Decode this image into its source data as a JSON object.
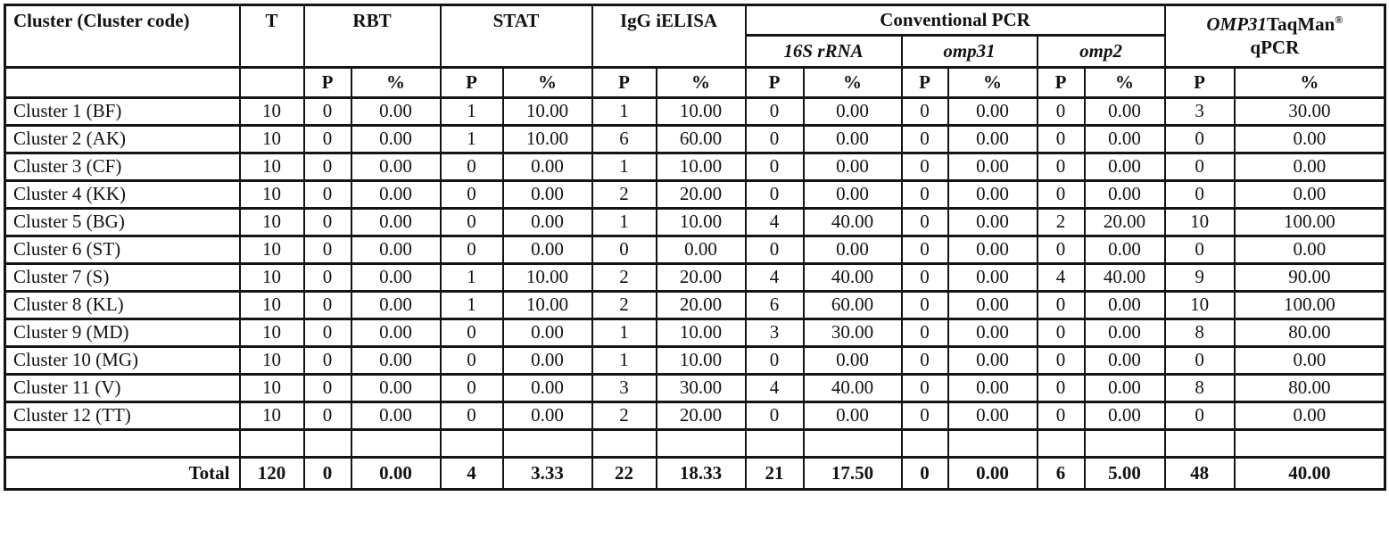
{
  "page": {
    "background_color": "#ffffff",
    "border_color": "#141414",
    "text_color": "#121212"
  },
  "table": {
    "header": {
      "cluster": "Cluster (Cluster code)",
      "t": "T",
      "rbt": "RBT",
      "stat": "STAT",
      "ielisa": "IgG iELISA",
      "conventional_pcr": "Conventional PCR",
      "genes": [
        "16S rRNA",
        "omp31",
        "omp2"
      ],
      "qpcr": {
        "gene": "OMP31",
        "name": "TaqMan",
        "registered": "®",
        "line2": "qPCR"
      },
      "p": "P",
      "pct": "%"
    },
    "rows": [
      {
        "name": "Cluster 1 (BF)",
        "t": "10",
        "values": [
          "0",
          "0.00",
          "1",
          "10.00",
          "1",
          "10.00",
          "0",
          "0.00",
          "0",
          "0.00",
          "0",
          "0.00",
          "3",
          "30.00"
        ]
      },
      {
        "name": "Cluster 2 (AK)",
        "t": "10",
        "values": [
          "0",
          "0.00",
          "1",
          "10.00",
          "6",
          "60.00",
          "0",
          "0.00",
          "0",
          "0.00",
          "0",
          "0.00",
          "0",
          "0.00"
        ]
      },
      {
        "name": "Cluster 3 (CF)",
        "t": "10",
        "values": [
          "0",
          "0.00",
          "0",
          "0.00",
          "1",
          "10.00",
          "0",
          "0.00",
          "0",
          "0.00",
          "0",
          "0.00",
          "0",
          "0.00"
        ]
      },
      {
        "name": "Cluster 4 (KK)",
        "t": "10",
        "values": [
          "0",
          "0.00",
          "0",
          "0.00",
          "2",
          "20.00",
          "0",
          "0.00",
          "0",
          "0.00",
          "0",
          "0.00",
          "0",
          "0.00"
        ]
      },
      {
        "name": "Cluster 5 (BG)",
        "t": "10",
        "values": [
          "0",
          "0.00",
          "0",
          "0.00",
          "1",
          "10.00",
          "4",
          "40.00",
          "0",
          "0.00",
          "2",
          "20.00",
          "10",
          "100.00"
        ]
      },
      {
        "name": "Cluster 6 (ST)",
        "t": "10",
        "values": [
          "0",
          "0.00",
          "0",
          "0.00",
          "0",
          "0.00",
          "0",
          "0.00",
          "0",
          "0.00",
          "0",
          "0.00",
          "0",
          "0.00"
        ]
      },
      {
        "name": "Cluster 7 (S)",
        "t": "10",
        "values": [
          "0",
          "0.00",
          "1",
          "10.00",
          "2",
          "20.00",
          "4",
          "40.00",
          "0",
          "0.00",
          "4",
          "40.00",
          "9",
          "90.00"
        ]
      },
      {
        "name": "Cluster 8 (KL)",
        "t": "10",
        "values": [
          "0",
          "0.00",
          "1",
          "10.00",
          "2",
          "20.00",
          "6",
          "60.00",
          "0",
          "0.00",
          "0",
          "0.00",
          "10",
          "100.00"
        ]
      },
      {
        "name": "Cluster 9 (MD)",
        "t": "10",
        "values": [
          "0",
          "0.00",
          "0",
          "0.00",
          "1",
          "10.00",
          "3",
          "30.00",
          "0",
          "0.00",
          "0",
          "0.00",
          "8",
          "80.00"
        ]
      },
      {
        "name": "Cluster 10 (MG)",
        "t": "10",
        "values": [
          "0",
          "0.00",
          "0",
          "0.00",
          "1",
          "10.00",
          "0",
          "0.00",
          "0",
          "0.00",
          "0",
          "0.00",
          "0",
          "0.00"
        ]
      },
      {
        "name": "Cluster 11 (V)",
        "t": "10",
        "values": [
          "0",
          "0.00",
          "0",
          "0.00",
          "3",
          "30.00",
          "4",
          "40.00",
          "0",
          "0.00",
          "0",
          "0.00",
          "8",
          "80.00"
        ]
      },
      {
        "name": "Cluster 12 (TT)",
        "t": "10",
        "values": [
          "0",
          "0.00",
          "0",
          "0.00",
          "2",
          "20.00",
          "0",
          "0.00",
          "0",
          "0.00",
          "0",
          "0.00",
          "0",
          "0.00"
        ]
      }
    ],
    "total": {
      "label": "Total",
      "t": "120",
      "values": [
        "0",
        "0.00",
        "4",
        "3.33",
        "22",
        "18.33",
        "21",
        "17.50",
        "0",
        "0.00",
        "6",
        "5.00",
        "48",
        "40.00"
      ]
    }
  }
}
